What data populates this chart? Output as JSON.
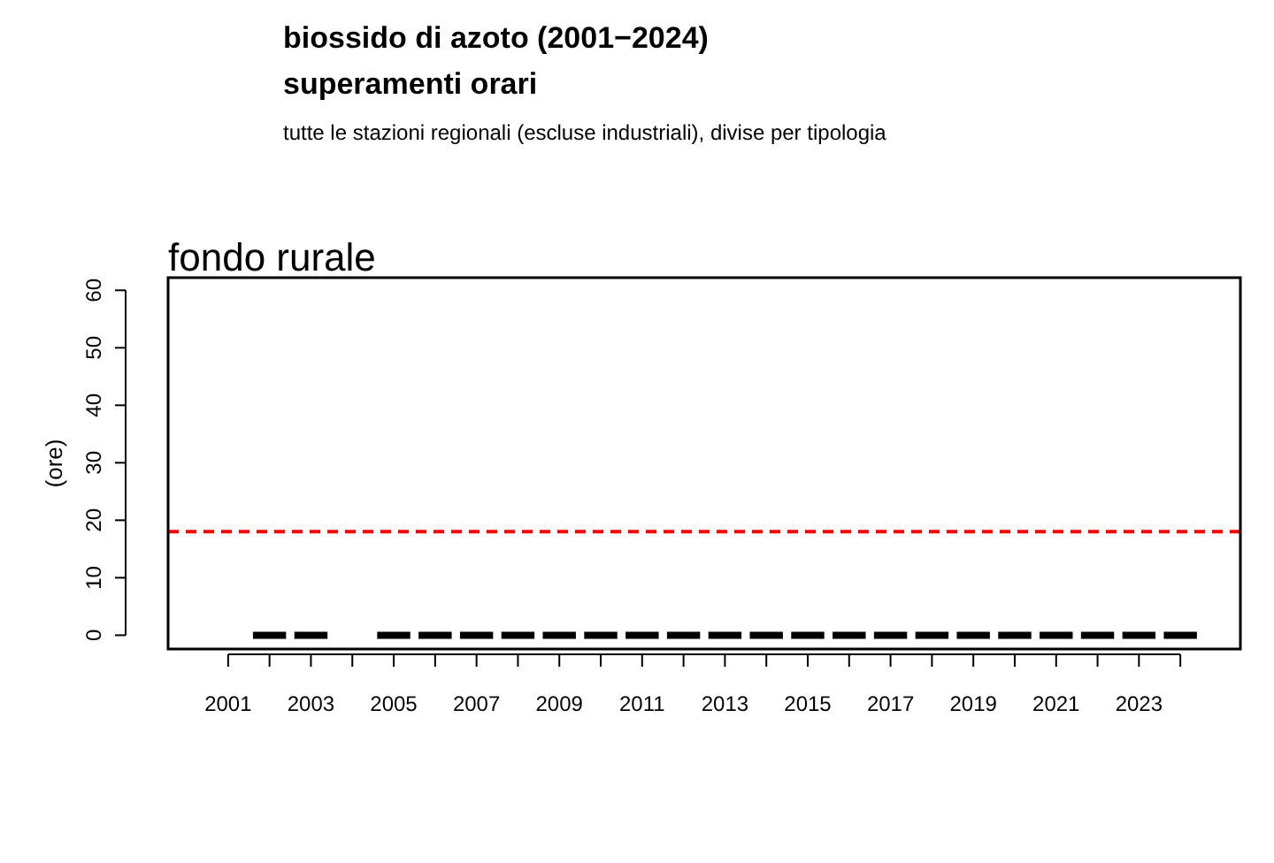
{
  "chart_data": {
    "type": "box",
    "title": "biossido di azoto (2001−2024)",
    "subtitle": "superamenti orari",
    "annotations": [
      "tutte le stazioni regionali (escluse industriali), divise per tipologia",
      "fondo rurale"
    ],
    "ylabel": "(ore)",
    "categories": [
      "2001",
      null,
      "2003",
      null,
      "2005",
      null,
      "2007",
      null,
      "2009",
      null,
      "2011",
      null,
      "2013",
      null,
      "2015",
      null,
      "2017",
      null,
      "2019",
      null,
      "2021",
      null,
      "2023",
      null
    ],
    "boxes": [
      null,
      {
        "low": 0,
        "q1": 0,
        "median": 0,
        "q3": 0,
        "high": 0
      },
      {
        "low": 0,
        "q1": 0,
        "median": 0,
        "q3": 0,
        "high": 0
      },
      null,
      {
        "low": 0,
        "q1": 0,
        "median": 0,
        "q3": 0,
        "high": 0
      },
      {
        "low": 0,
        "q1": 0,
        "median": 0,
        "q3": 0,
        "high": 0
      },
      {
        "low": 0,
        "q1": 0,
        "median": 0,
        "q3": 0,
        "high": 0
      },
      {
        "low": 0,
        "q1": 0,
        "median": 0,
        "q3": 0,
        "high": 0
      },
      {
        "low": 0,
        "q1": 0,
        "median": 0,
        "q3": 0,
        "high": 0
      },
      {
        "low": 0,
        "q1": 0,
        "median": 0,
        "q3": 0,
        "high": 0
      },
      {
        "low": 0,
        "q1": 0,
        "median": 0,
        "q3": 0,
        "high": 0
      },
      {
        "low": 0,
        "q1": 0,
        "median": 0,
        "q3": 0,
        "high": 0
      },
      {
        "low": 0,
        "q1": 0,
        "median": 0,
        "q3": 0,
        "high": 0
      },
      {
        "low": 0,
        "q1": 0,
        "median": 0,
        "q3": 0,
        "high": 0
      },
      {
        "low": 0,
        "q1": 0,
        "median": 0,
        "q3": 0,
        "high": 0
      },
      {
        "low": 0,
        "q1": 0,
        "median": 0,
        "q3": 0,
        "high": 0
      },
      {
        "low": 0,
        "q1": 0,
        "median": 0,
        "q3": 0,
        "high": 0
      },
      {
        "low": 0,
        "q1": 0,
        "median": 0,
        "q3": 0,
        "high": 0
      },
      {
        "low": 0,
        "q1": 0,
        "median": 0,
        "q3": 0,
        "high": 0
      },
      {
        "low": 0,
        "q1": 0,
        "median": 0,
        "q3": 0,
        "high": 0
      },
      {
        "low": 0,
        "q1": 0,
        "median": 0,
        "q3": 0,
        "high": 0
      },
      {
        "low": 0,
        "q1": 0,
        "median": 0,
        "q3": 0,
        "high": 0
      },
      {
        "low": 0,
        "q1": 0,
        "median": 0,
        "q3": 0,
        "high": 0
      },
      {
        "low": 0,
        "q1": 0,
        "median": 0,
        "q3": 0,
        "high": 0
      }
    ],
    "color": "#000000",
    "ylim": [
      -2.4,
      62.2
    ],
    "yticks": [
      0,
      10,
      20,
      30,
      40,
      50,
      60
    ],
    "ref_lines": [
      {
        "axis": "y",
        "value": 18,
        "color": "#ff0000",
        "line_style": "dashed"
      }
    ]
  }
}
